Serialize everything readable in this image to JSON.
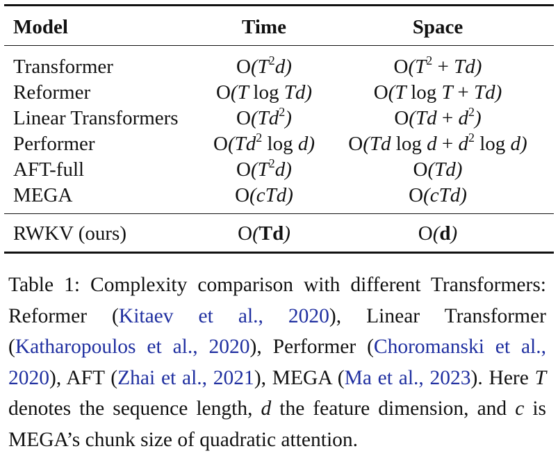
{
  "table": {
    "headers": {
      "model": "Model",
      "time": "Time",
      "space": "Space"
    },
    "rows": [
      {
        "model": "Transformer",
        "time": "O(T²d)",
        "space": "O(T² + Td)"
      },
      {
        "model": "Reformer",
        "time": "O(T log Td)",
        "space": "O(T log T + Td)"
      },
      {
        "model": "Linear Transformers",
        "time": "O(Td²)",
        "space": "O(Td + d²)"
      },
      {
        "model": "Performer",
        "time": "O(Td² log d)",
        "space": "O(Td log d + d² log d)"
      },
      {
        "model": "AFT-full",
        "time": "O(T²d)",
        "space": "O(Td)"
      },
      {
        "model": "MEGA",
        "time": "O(cTd)",
        "space": "O(cTd)"
      }
    ],
    "ours": {
      "model": "RWKV (ours)",
      "time": "O(Td)",
      "space": "O(d)"
    }
  },
  "caption": {
    "lead": "Table 1: Complexity comparison with different Transformers: Reformer (",
    "cite1": "Kitaev et al., 2020",
    "t1": "), Linear Transformer (",
    "cite2": "Katharopoulos et al., 2020",
    "t2": "), Performer (",
    "cite3": "Choromanski et al., 2020",
    "t3": "), AFT (",
    "cite4": "Zhai et al., 2021",
    "t4": "), MEGA (",
    "cite5": "Ma et al., 2023",
    "t5": "). Here ",
    "var_T": "T",
    "t6": " denotes the sequence length, ",
    "var_d": "d",
    "t7": " the feature dimension, and ",
    "var_c": "c",
    "t8": " is MEGA’s chunk size of quadratic attention."
  },
  "colors": {
    "text": "#111111",
    "citation": "#1f2fa0"
  }
}
